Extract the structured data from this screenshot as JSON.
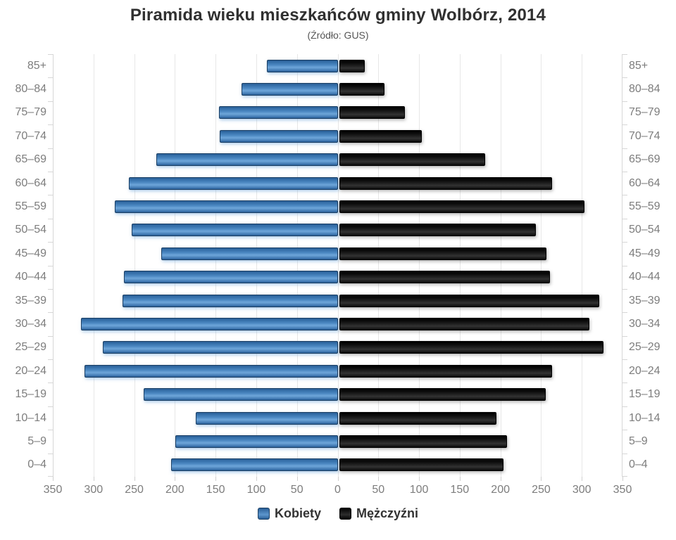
{
  "title": "Piramida wieku mieszkańców gminy Wolbórz, 2014",
  "subtitle": "(Źródło: GUS)",
  "legend": [
    {
      "label": "Kobiety",
      "color": "#4a86c0"
    },
    {
      "label": "Mężczyźni",
      "color": "#111111"
    }
  ],
  "colors": {
    "female_bar": "#4a86c0",
    "male_bar": "#111111",
    "gridline": "#e7e7e7",
    "axis_line": "#d6d6d6",
    "axis_label": "#7d7d7d",
    "title_text": "#303030",
    "subtitle_text": "#555555"
  },
  "chart_data": {
    "type": "bar",
    "variant": "population-pyramid",
    "orientation": "horizontal",
    "grid": true,
    "legend_position": "bottom",
    "xmax_per_side": 350,
    "tick_interval": 50,
    "x_tick_labels": [
      "350",
      "300",
      "250",
      "200",
      "150",
      "100",
      "50",
      "0",
      "50",
      "100",
      "150",
      "200",
      "250",
      "300",
      "350"
    ],
    "categories": [
      "85+",
      "80–84",
      "75–79",
      "70–74",
      "65–69",
      "60–64",
      "55–59",
      "50–54",
      "45–49",
      "40–44",
      "35–39",
      "30–34",
      "25–29",
      "20–24",
      "15–19",
      "10–14",
      "5–9",
      "0–4"
    ],
    "series": [
      {
        "name": "Kobiety",
        "side": "left",
        "values": [
          85,
          116,
          144,
          143,
          221,
          255,
          272,
          251,
          215,
          261,
          263,
          314,
          287,
          309,
          237,
          173,
          198,
          203
        ]
      },
      {
        "name": "Mężczyźni",
        "side": "right",
        "values": [
          30,
          54,
          79,
          100,
          178,
          260,
          300,
          240,
          253,
          257,
          318,
          306,
          323,
          260,
          252,
          192,
          205,
          200
        ]
      }
    ]
  }
}
